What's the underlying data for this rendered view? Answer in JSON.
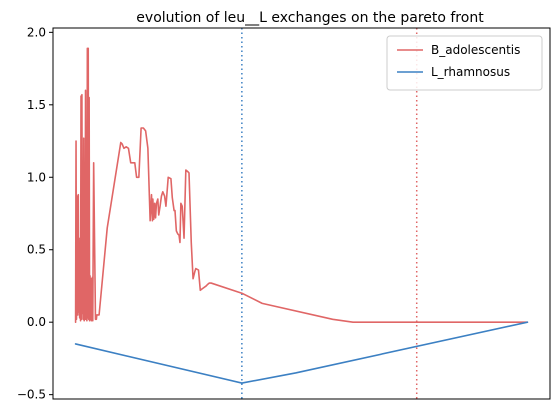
{
  "chart_data": {
    "type": "line",
    "title": "evolution of leu__L exchanges on the pareto front",
    "xlabel": "",
    "ylabel": "",
    "x_ticks_visible": false,
    "xlim": [
      -5,
      105
    ],
    "ylim": [
      -0.53,
      2.03
    ],
    "yticks": [
      -0.5,
      0.0,
      0.5,
      1.0,
      1.5,
      2.0
    ],
    "ytick_labels": [
      "−0.5",
      "0.0",
      "0.5",
      "1.0",
      "1.5",
      "2.0"
    ],
    "grid": false,
    "legend_position": "top-right",
    "series": [
      {
        "name": "B_adolescentis",
        "color": "#e06666",
        "x": [
          0.0,
          0.1,
          0.2,
          0.3,
          0.4,
          0.5,
          0.6,
          0.7,
          0.8,
          0.9,
          1.0,
          1.1,
          1.2,
          1.3,
          1.4,
          1.5,
          1.6,
          1.7,
          1.8,
          1.9,
          2.0,
          2.1,
          2.2,
          2.3,
          2.4,
          2.5,
          2.6,
          2.7,
          2.8,
          2.9,
          3.0,
          3.1,
          3.2,
          3.3,
          3.4,
          3.5,
          3.6,
          3.7,
          3.8,
          4.0,
          4.4,
          4.6,
          4.7,
          5.0,
          5.2,
          7.0,
          10.0,
          10.3,
          10.7,
          11.2,
          11.7,
          12.2,
          12.6,
          13.1,
          13.5,
          14.0,
          14.5,
          15.0,
          15.5,
          16.0,
          16.5,
          16.8,
          17.0,
          17.1,
          17.3,
          17.5,
          17.7,
          17.9,
          18.2,
          18.4,
          18.7,
          19.0,
          19.3,
          19.7,
          20.0,
          20.5,
          21.1,
          21.4,
          21.8,
          22.0,
          22.3,
          22.6,
          22.9,
          23.1,
          23.3,
          23.6,
          24.0,
          24.4,
          24.8,
          25.1,
          25.6,
          26.0,
          26.4,
          26.6,
          27.2,
          27.6,
          28.0,
          28.9,
          29.2,
          29.6,
          30.0,
          36.8,
          41.3,
          56.9,
          61.4,
          100.0
        ],
        "y": [
          0.0,
          1.25,
          0.02,
          0.35,
          0.87,
          0.05,
          0.88,
          0.07,
          0.42,
          0.03,
          0.58,
          0.01,
          1.56,
          0.02,
          1.57,
          0.06,
          0.62,
          0.02,
          1.27,
          0.01,
          1.0,
          0.02,
          1.6,
          0.02,
          0.3,
          0.01,
          1.89,
          0.03,
          1.89,
          0.02,
          1.55,
          0.01,
          0.32,
          0.02,
          0.3,
          0.01,
          0.25,
          0.31,
          0.01,
          1.1,
          0.02,
          0.02,
          0.05,
          0.05,
          0.05,
          0.65,
          1.24,
          1.23,
          1.2,
          1.21,
          1.2,
          1.1,
          1.1,
          1.1,
          1.0,
          1.0,
          1.34,
          1.34,
          1.32,
          1.2,
          0.7,
          0.88,
          0.7,
          0.85,
          0.71,
          0.82,
          0.72,
          0.82,
          0.85,
          0.74,
          0.8,
          0.87,
          0.9,
          0.87,
          0.8,
          1.0,
          0.99,
          0.86,
          0.77,
          0.77,
          0.63,
          0.61,
          0.6,
          0.55,
          0.82,
          0.8,
          0.58,
          1.05,
          1.04,
          1.03,
          0.55,
          0.3,
          0.35,
          0.37,
          0.36,
          0.22,
          0.23,
          0.25,
          0.26,
          0.27,
          0.27,
          0.2,
          0.13,
          0.02,
          0.0,
          0.0
        ]
      },
      {
        "name": "L_rhamnosus",
        "color": "#3c80c3",
        "x": [
          0.0,
          36.8,
          48.7,
          100.0
        ],
        "y": [
          -0.15,
          -0.42,
          -0.35,
          0.0
        ]
      }
    ],
    "vlines": [
      {
        "x": 36.8,
        "color": "#3c80c3",
        "style": "dotted"
      },
      {
        "x": 75.5,
        "color": "#e06666",
        "style": "dotted"
      }
    ]
  }
}
